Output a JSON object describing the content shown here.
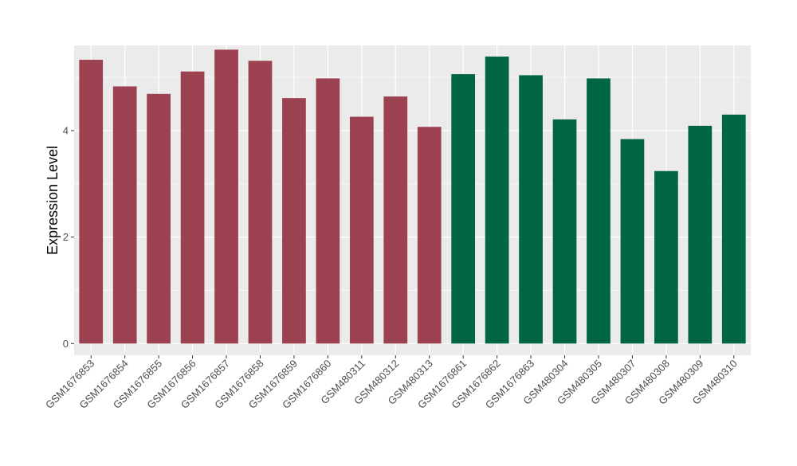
{
  "chart_data": {
    "type": "bar",
    "ylabel": "Expression Level",
    "xlabel": "",
    "ylim": [
      -0.22,
      5.6
    ],
    "yticks": [
      0,
      2,
      4
    ],
    "grid": true,
    "legend": "none",
    "colors": {
      "panel_background": "#ebebeb",
      "grid": "#ffffff",
      "group_1": "#9b4150",
      "group_2": "#006644",
      "axis_text": "#4d4d4d",
      "axis_title": "#000000"
    },
    "categories": [
      "GSM1676853",
      "GSM1676854",
      "GSM1676855",
      "GSM1676856",
      "GSM1676857",
      "GSM1676858",
      "GSM1676859",
      "GSM1676860",
      "GSM480311",
      "GSM480312",
      "GSM480313",
      "GSM1676861",
      "GSM1676862",
      "GSM1676863",
      "GSM480304",
      "GSM480305",
      "GSM480307",
      "GSM480308",
      "GSM480309",
      "GSM480310"
    ],
    "values": [
      5.33,
      4.83,
      4.69,
      5.11,
      5.52,
      5.31,
      4.61,
      4.98,
      4.26,
      4.64,
      4.07,
      5.06,
      5.39,
      5.04,
      4.21,
      4.98,
      3.84,
      3.24,
      4.09,
      4.3
    ],
    "groups": [
      1,
      1,
      1,
      1,
      1,
      1,
      1,
      1,
      1,
      1,
      1,
      2,
      2,
      2,
      2,
      2,
      2,
      2,
      2,
      2
    ]
  }
}
